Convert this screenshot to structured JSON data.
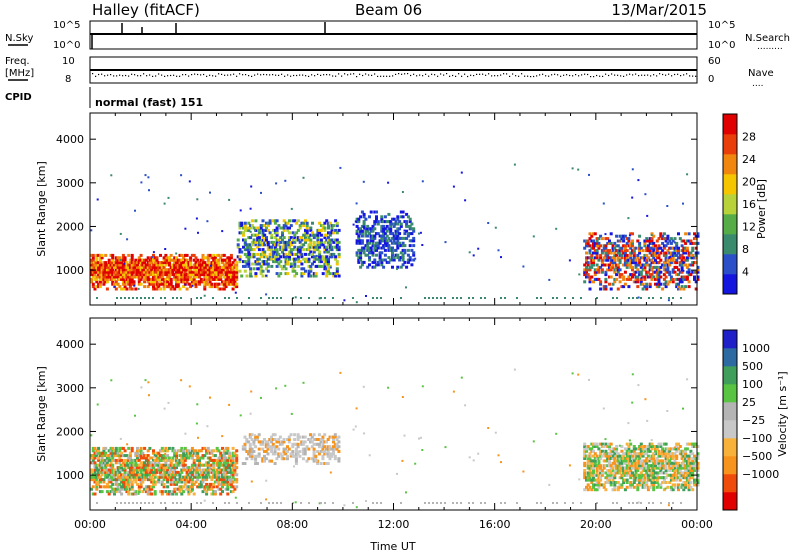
{
  "header": {
    "site": "Halley (fitACF)",
    "beam": "Beam 06",
    "date": "13/Mar/2015"
  },
  "top_panels": {
    "nsky_label": "N.Sky",
    "nsearch_label": "N.Search",
    "nsky_ticks": [
      "10^5",
      "10^0"
    ],
    "nsearch_ticks": [
      "10^5",
      "10^0"
    ],
    "freq_label_1": "Freq.",
    "freq_label_2": "[MHz]",
    "freq_ticks": [
      "10",
      "8"
    ],
    "nave_label": "Nave",
    "nave_ticks": [
      "60",
      "0"
    ],
    "cpid_label": "CPID",
    "cpid_text": "normal (fast) 151"
  },
  "colors": {
    "power_scale": [
      "#1515e0",
      "#2a4fc8",
      "#3a8a6e",
      "#56ad48",
      "#b8d33a",
      "#f5c500",
      "#f0860e",
      "#e93d0a",
      "#e00000"
    ],
    "velocity_scale": [
      "#e00000",
      "#ef4b0a",
      "#f7941d",
      "#f8b23c",
      "#c8c8c8",
      "#b4b4b4",
      "#58c442",
      "#3e9e5a",
      "#2e6aa2",
      "#2020c8"
    ]
  },
  "chart_data": [
    {
      "type": "heatmap",
      "title": "Power",
      "ylabel": "Slant Range [km]",
      "xlabel": "",
      "ylim": [
        200,
        4600
      ],
      "xlim": [
        0,
        24
      ],
      "y_ticks": [
        "1000",
        "2000",
        "3000",
        "4000"
      ],
      "colorbar": {
        "label": "Power [dB]",
        "ticks": [
          "4",
          "8",
          "12",
          "16",
          "20",
          "24",
          "28"
        ],
        "range": [
          0,
          32
        ]
      },
      "echo_regions": [
        {
          "t_start": 0.0,
          "t_end": 5.8,
          "r_low": 600,
          "r_high": 1400,
          "level": "28"
        },
        {
          "t_start": 5.8,
          "t_end": 9.8,
          "r_low": 900,
          "r_high": 2200,
          "level": "12"
        },
        {
          "t_start": 10.5,
          "t_end": 12.8,
          "r_low": 1100,
          "r_high": 2400,
          "level": "8"
        },
        {
          "t_start": 19.5,
          "t_end": 24.0,
          "r_low": 600,
          "r_high": 1900,
          "level": "24"
        }
      ]
    },
    {
      "type": "heatmap",
      "title": "Velocity",
      "ylabel": "Slant Range [km]",
      "xlabel": "Time UT",
      "ylim": [
        200,
        4600
      ],
      "xlim": [
        0,
        24
      ],
      "y_ticks": [
        "1000",
        "2000",
        "3000",
        "4000"
      ],
      "x_ticks": [
        "00:00",
        "04:00",
        "08:00",
        "12:00",
        "16:00",
        "20:00",
        "00:00"
      ],
      "colorbar": {
        "label": "Velocity [m s⁻¹]",
        "ticks": [
          "1000",
          "500",
          "100",
          "25",
          "−25",
          "−100",
          "−500",
          "−1000"
        ]
      },
      "echo_regions": [
        {
          "t_start": 0.0,
          "t_end": 5.8,
          "r_low": 600,
          "r_high": 1700,
          "level": "100"
        },
        {
          "t_start": 6.0,
          "t_end": 9.8,
          "r_low": 1300,
          "r_high": 2000,
          "level": "-25"
        },
        {
          "t_start": 19.5,
          "t_end": 24.0,
          "r_low": 700,
          "r_high": 1800,
          "level": "-100"
        }
      ]
    }
  ]
}
